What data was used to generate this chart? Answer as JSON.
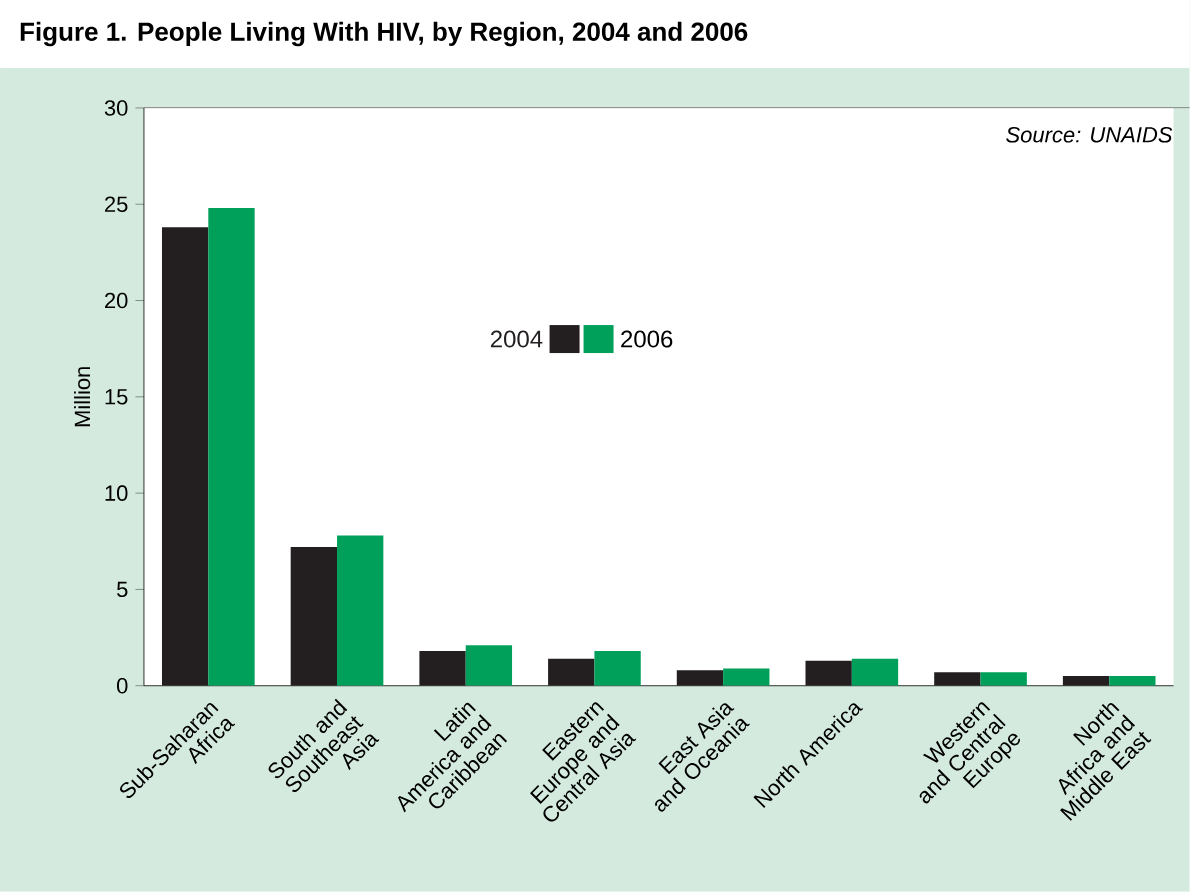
{
  "chart_data": {
    "type": "bar",
    "title": "Figure  1. People Living With HIV, by Region, 2004 and 2006",
    "categories": [
      "Sub-Saharan Africa",
      "South and Southeast Asia",
      "Latin America and Caribbean",
      "Eastern Europe and Central Asia",
      "East Asia and Oceania",
      "North America",
      "Western and Central Europe",
      "North Africa and Middle East"
    ],
    "series": [
      {
        "name": "2004",
        "color": "#231f20",
        "values": [
          23.8,
          7.2,
          1.8,
          1.4,
          0.8,
          1.3,
          0.7,
          0.5
        ]
      },
      {
        "name": "2006",
        "color": "#00a05a",
        "values": [
          24.8,
          7.8,
          2.1,
          1.8,
          0.9,
          1.4,
          0.7,
          0.5
        ]
      }
    ],
    "ylabel": "Million",
    "ylim": [
      0,
      30
    ],
    "yticks": [
      0,
      5,
      10,
      15,
      20,
      25,
      30
    ],
    "annotations": [
      "Source: UNAIDS"
    ],
    "legend": "top",
    "grid": false
  }
}
